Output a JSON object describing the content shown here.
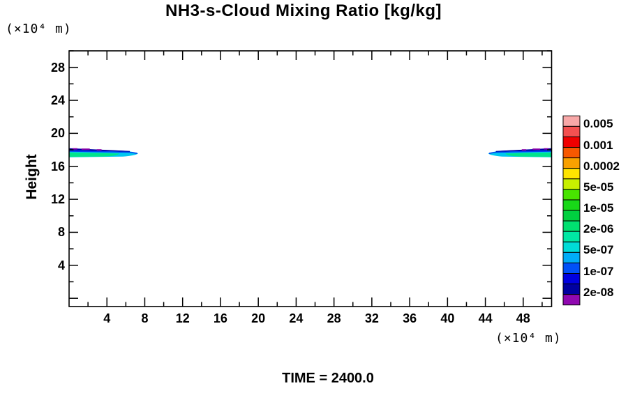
{
  "figure": {
    "title": "NH3-s-Cloud Mixing Ratio [kg/kg]",
    "ylabel": "Height",
    "y_units": "(×10⁴ m)",
    "x_units": "(×10⁴ m)",
    "time_label": "TIME = 2400.0"
  },
  "colorbar": {
    "labels": [
      "0.005",
      "0.001",
      "0.0002",
      "5e-05",
      "1e-05",
      "2e-06",
      "5e-07",
      "1e-07",
      "2e-08"
    ],
    "cell_colors_top_to_bottom": [
      "#F8A8A8",
      "#F45050",
      "#F00000",
      "#F85800",
      "#F8A000",
      "#FFE400",
      "#C8F000",
      "#48E400",
      "#18D818",
      "#00D040",
      "#00E070",
      "#00E8A4",
      "#00DCD8",
      "#00ACF8",
      "#0050F8",
      "#0000E0",
      "#0000A0",
      "#9008B0"
    ]
  },
  "chart_data": {
    "type": "heatmap",
    "subtype": "filled-contour",
    "title": "NH3-s-Cloud Mixing Ratio [kg/kg]",
    "xlabel": "(×10⁴ m)",
    "ylabel": "Height (×10⁴ m)",
    "xlim": [
      0,
      51
    ],
    "ylim": [
      -1,
      30
    ],
    "x_major_ticks": [
      4,
      8,
      12,
      16,
      20,
      24,
      28,
      32,
      36,
      40,
      44,
      48
    ],
    "y_major_ticks": [
      4,
      8,
      12,
      16,
      20,
      24,
      28
    ],
    "minor_tick_step": 2,
    "grid": false,
    "legend_position": "right-colorbar",
    "time": 2400.0,
    "levels": [
      "2e-08",
      "5e-08",
      "1e-07",
      "2e-07",
      "5e-07",
      "1e-06",
      "2e-06",
      "5e-06",
      "1e-05",
      "2e-05",
      "5e-05",
      "0.0001",
      "0.0002",
      "0.0005",
      "0.001",
      "0.002",
      "0.005",
      "0.01"
    ],
    "labeled_levels": [
      "0.005",
      "0.001",
      "0.0002",
      "5e-05",
      "1e-05",
      "2e-06",
      "5e-07",
      "1e-07",
      "2e-08"
    ],
    "band_layer_colors": {
      "core_green": "#00E48C",
      "body_cyan": "#00C8F0",
      "upper_blue": "#0040F0",
      "upper_navy": "#0000A8",
      "specks_purple": "#8800A8"
    },
    "bands": [
      {
        "name": "left-cloud-band",
        "attached_edge": "left",
        "x_from": 0,
        "x_to": 7.3,
        "height_from": 17.1,
        "height_to": 18.2,
        "peak_level": "≈2e-06 kg/kg (green core at left edge)"
      },
      {
        "name": "right-cloud-band",
        "attached_edge": "right",
        "x_from": 44.3,
        "x_to": 51,
        "height_from": 17.1,
        "height_to": 18.2,
        "peak_level": "≈2e-06 kg/kg (green core at right edge)"
      }
    ]
  }
}
